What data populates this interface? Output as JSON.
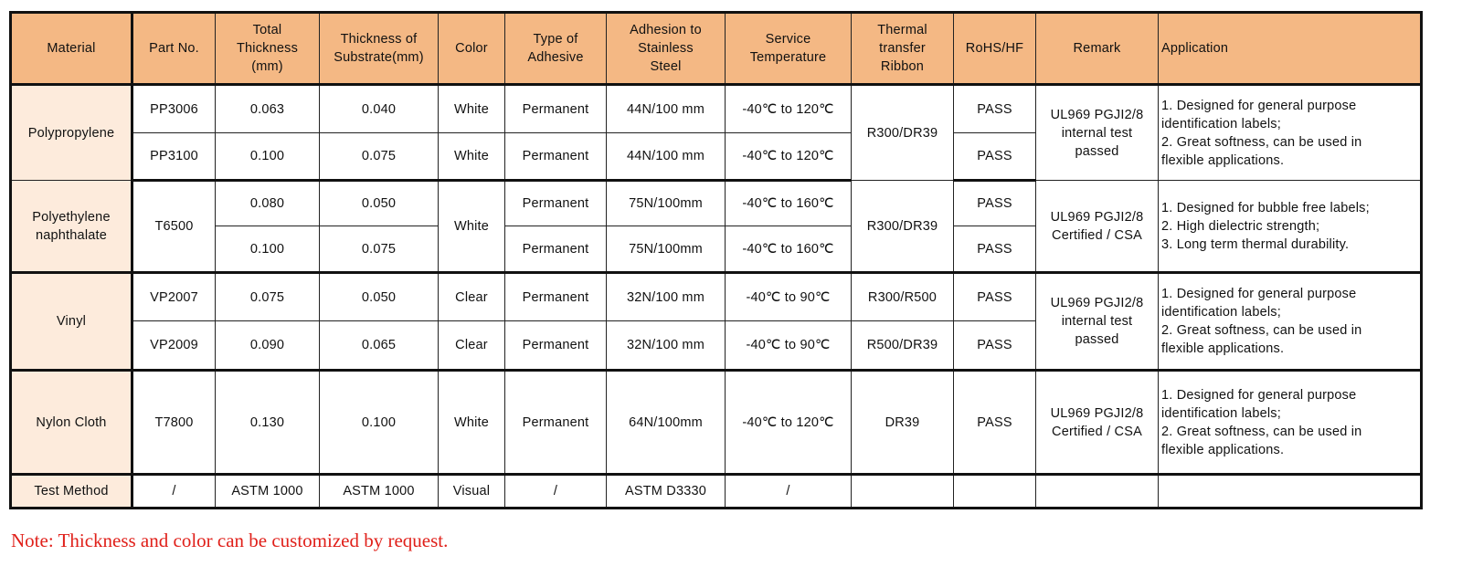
{
  "headers": [
    "Material",
    "Part No.",
    "Total\nThickness\n(mm)",
    "Thickness of\nSubstrate(mm)",
    "Color",
    "Type of\nAdhesive",
    "Adhesion to\nStainless\nSteel",
    "Service\nTemperature",
    "Thermal\ntransfer\nRibbon",
    "RoHS/HF",
    "Remark",
    "Application"
  ],
  "pp": {
    "material": "Polypropylene",
    "ribbon": "R300/DR39",
    "remark": "UL969 PGJI2/8\ninternal test\npassed",
    "application": "1. Designed for general purpose\nidentification labels;\n2. Great softness, can be used in\nflexible applications.",
    "rows": [
      {
        "part": "PP3006",
        "total": "0.063",
        "substrate": "0.040",
        "color": "White",
        "adhesive": "Permanent",
        "adhesion": "44N/100 mm",
        "temp": "-40℃ to 120℃",
        "rohs": "PASS"
      },
      {
        "part": "PP3100",
        "total": "0.100",
        "substrate": "0.075",
        "color": "White",
        "adhesive": "Permanent",
        "adhesion": "44N/100 mm",
        "temp": "-40℃ to 120℃",
        "rohs": "PASS"
      }
    ]
  },
  "pen": {
    "material": "Polyethylene\nnaphthalate",
    "part": "T6500",
    "color": "White",
    "ribbon": "R300/DR39",
    "remark": "UL969 PGJI2/8\nCertified / CSA",
    "application": "1. Designed for bubble free labels;\n2. High dielectric strength;\n3. Long term thermal durability.",
    "rows": [
      {
        "total": "0.080",
        "substrate": "0.050",
        "adhesive": "Permanent",
        "adhesion": "75N/100mm",
        "temp": "-40℃ to 160℃",
        "rohs": "PASS"
      },
      {
        "total": "0.100",
        "substrate": "0.075",
        "adhesive": "Permanent",
        "adhesion": "75N/100mm",
        "temp": "-40℃ to 160℃",
        "rohs": "PASS"
      }
    ]
  },
  "vinyl": {
    "material": "Vinyl",
    "remark": "UL969 PGJI2/8\ninternal test\npassed",
    "application": "1. Designed for general purpose\nidentification labels;\n2. Great softness, can be used in\nflexible applications.",
    "rows": [
      {
        "part": "VP2007",
        "total": "0.075",
        "substrate": "0.050",
        "color": "Clear",
        "adhesive": "Permanent",
        "adhesion": "32N/100 mm",
        "temp": "-40℃ to 90℃",
        "ribbon": "R300/R500",
        "rohs": "PASS"
      },
      {
        "part": "VP2009",
        "total": "0.090",
        "substrate": "0.065",
        "color": "Clear",
        "adhesive": "Permanent",
        "adhesion": "32N/100 mm",
        "temp": "-40℃ to 90℃",
        "ribbon": "R500/DR39",
        "rohs": "PASS"
      }
    ]
  },
  "nylon": {
    "material": "Nylon Cloth",
    "part": "T7800",
    "total": "0.130",
    "substrate": "0.100",
    "color": "White",
    "adhesive": "Permanent",
    "adhesion": "64N/100mm",
    "temp": "-40℃ to 120℃",
    "ribbon": "DR39",
    "rohs": "PASS",
    "remark": "UL969 PGJI2/8\nCertified / CSA",
    "application": "1. Designed for general purpose\nidentification labels;\n2. Great softness, can be used in\nflexible applications."
  },
  "test": {
    "material": "Test Method",
    "part": "/",
    "total": "ASTM 1000",
    "substrate": "ASTM 1000",
    "color": "Visual",
    "adhesive": "/",
    "adhesion": "ASTM D3330",
    "temp": "/"
  },
  "note": "Note: Thickness  and color can be customized by request.",
  "colors": {
    "header_bg": "#F4B884",
    "material_bg": "#FDEBDC",
    "note": "#e0201a"
  }
}
